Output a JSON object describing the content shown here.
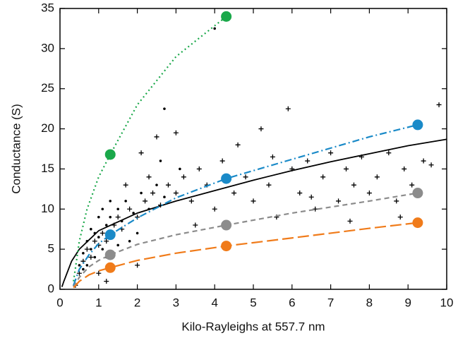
{
  "chart_data": {
    "type": "scatter",
    "x_label": "Kilo-Rayleighs at 557.7 nm",
    "y_label": "Conductance (S)",
    "xlim": [
      0,
      10
    ],
    "xticks": [
      0,
      1,
      2,
      3,
      4,
      5,
      6,
      7,
      8,
      9,
      10
    ],
    "ylim": [
      0,
      35
    ],
    "yticks": [
      0,
      5,
      10,
      15,
      20,
      25,
      30,
      35
    ],
    "scatter_plus": {
      "color": "#000000",
      "x": [
        0.5,
        0.6,
        0.7,
        0.8,
        0.9,
        1.0,
        1.1,
        1.2,
        1.4,
        1.5,
        1.6,
        1.8,
        2.0,
        2.2,
        2.4,
        2.6,
        2.8,
        3.0,
        3.2,
        3.4,
        3.6,
        3.8,
        4.0,
        4.2,
        4.5,
        4.8,
        5.0,
        5.2,
        5.4,
        5.6,
        5.9,
        6.0,
        6.2,
        6.4,
        6.6,
        6.8,
        7.0,
        7.2,
        7.4,
        7.6,
        7.8,
        8.0,
        8.2,
        8.5,
        8.7,
        8.9,
        9.1,
        9.4,
        9.6,
        9.8,
        2.5,
        3.0,
        2.1,
        4.6,
        3.5,
        2.0,
        1.2,
        6.5,
        7.5,
        8.8,
        1.7,
        2.3,
        0.4,
        1.0,
        5.5
      ],
      "values": [
        2,
        3.5,
        5,
        4,
        6,
        5.5,
        7,
        6,
        8,
        9,
        7.5,
        10,
        9,
        11,
        12,
        10.5,
        13,
        12,
        14,
        11,
        15,
        13,
        10,
        16,
        12,
        14,
        11,
        20,
        13,
        9,
        22.5,
        15,
        12,
        16,
        10,
        14,
        17,
        11,
        15,
        13,
        16.5,
        12,
        14,
        17,
        11,
        15,
        13,
        16,
        15.5,
        23,
        19,
        19.5,
        17,
        18,
        8,
        3,
        1,
        11.5,
        8.5,
        9,
        13,
        14,
        0.5,
        2,
        16.5
      ]
    },
    "scatter_dot": {
      "color": "#000000",
      "x": [
        0.5,
        0.6,
        0.7,
        0.8,
        0.9,
        1.0,
        1.1,
        1.2,
        1.3,
        1.4,
        1.5,
        1.6,
        1.7,
        1.9,
        2.1,
        2.3,
        2.5,
        2.7,
        3.1,
        0.6,
        0.8,
        1.0,
        1.2,
        1.5,
        2.0,
        2.6,
        1.3,
        0.7,
        0.9,
        4.0,
        2.7,
        1.1,
        1.8
      ],
      "values": [
        3,
        4.5,
        6,
        5,
        7,
        6.5,
        5,
        8,
        9,
        7,
        10,
        8.5,
        11,
        9.5,
        12,
        10,
        13,
        11.5,
        15,
        2.5,
        7.5,
        9,
        4,
        5.5,
        7,
        16,
        11,
        3,
        4,
        32.5,
        22.5,
        10,
        6
      ]
    },
    "fit": {
      "color": "#000000",
      "x": [
        0.05,
        0.1,
        0.3,
        0.5,
        1,
        1.5,
        2,
        3,
        4,
        5,
        6,
        7,
        8,
        9,
        10
      ],
      "values": [
        0.3,
        1,
        3.5,
        5,
        7.3,
        8.4,
        9.5,
        11,
        12.3,
        13.6,
        14.8,
        15.9,
        16.9,
        17.9,
        18.7
      ]
    },
    "series": [
      {
        "color": "#1aa84a",
        "dash": "2 4",
        "x": [
          0.35,
          0.5,
          0.7,
          1.0,
          1.3,
          2,
          3,
          4.3
        ],
        "values": [
          1,
          6,
          10,
          14,
          16.8,
          23,
          29,
          34
        ],
        "marker_x": [
          1.3,
          4.3
        ],
        "marker_values": [
          16.8,
          34
        ]
      },
      {
        "color": "#1a8ac8",
        "dash": "10 4 2 4",
        "x": [
          0.35,
          0.5,
          0.75,
          1.0,
          1.3,
          2,
          3,
          4.3,
          6,
          8,
          9.25
        ],
        "values": [
          0.5,
          2.5,
          4.3,
          5.7,
          6.8,
          8.9,
          11.4,
          13.8,
          16.2,
          19.0,
          20.5
        ],
        "marker_x": [
          1.3,
          4.3,
          9.25
        ],
        "marker_values": [
          6.8,
          13.8,
          20.5
        ]
      },
      {
        "color": "#8c8c8c",
        "dash": "7 5",
        "x": [
          0.35,
          0.5,
          0.75,
          1.0,
          1.3,
          2,
          3,
          4.3,
          6,
          8,
          9.25
        ],
        "values": [
          0.3,
          1.5,
          2.8,
          3.6,
          4.3,
          5.6,
          6.8,
          8,
          9.5,
          11,
          12
        ],
        "marker_x": [
          1.3,
          4.3,
          9.25
        ],
        "marker_values": [
          4.3,
          8,
          12
        ]
      },
      {
        "color": "#f07b1a",
        "dash": "16 6",
        "x": [
          0.35,
          0.5,
          0.75,
          1.0,
          1.3,
          2,
          3,
          4.3,
          6,
          8,
          9.25
        ],
        "values": [
          0.2,
          1,
          1.8,
          2.3,
          2.7,
          3.6,
          4.5,
          5.4,
          6.4,
          7.6,
          8.3
        ],
        "marker_x": [
          1.3,
          4.3,
          9.25
        ],
        "marker_values": [
          2.7,
          5.4,
          8.3
        ]
      }
    ]
  }
}
